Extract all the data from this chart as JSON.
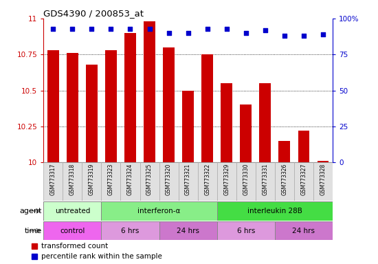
{
  "title": "GDS4390 / 200853_at",
  "samples": [
    "GSM773317",
    "GSM773318",
    "GSM773319",
    "GSM773323",
    "GSM773324",
    "GSM773325",
    "GSM773320",
    "GSM773321",
    "GSM773322",
    "GSM773329",
    "GSM773330",
    "GSM773331",
    "GSM773326",
    "GSM773327",
    "GSM773328"
  ],
  "bar_values": [
    10.78,
    10.76,
    10.68,
    10.78,
    10.9,
    10.98,
    10.8,
    10.5,
    10.75,
    10.55,
    10.4,
    10.55,
    10.15,
    10.22,
    10.01
  ],
  "percentile_values": [
    93,
    93,
    93,
    93,
    93,
    93,
    90,
    90,
    93,
    93,
    90,
    92,
    88,
    88,
    89
  ],
  "bar_color": "#cc0000",
  "dot_color": "#0000cc",
  "ylim_left": [
    10,
    11
  ],
  "ylim_right": [
    0,
    100
  ],
  "yticks_left": [
    10,
    10.25,
    10.5,
    10.75,
    11
  ],
  "yticks_right": [
    0,
    25,
    50,
    75,
    100
  ],
  "ytick_labels_right": [
    "0",
    "25",
    "50",
    "75",
    "100%"
  ],
  "agent_groups": [
    {
      "label": "untreated",
      "start": 0,
      "end": 3,
      "color": "#ccffcc"
    },
    {
      "label": "interferon-α",
      "start": 3,
      "end": 9,
      "color": "#88ee88"
    },
    {
      "label": "interleukin 28B",
      "start": 9,
      "end": 15,
      "color": "#44dd44"
    }
  ],
  "time_groups": [
    {
      "label": "control",
      "start": 0,
      "end": 3,
      "color": "#ee66ee"
    },
    {
      "label": "6 hrs",
      "start": 3,
      "end": 6,
      "color": "#dd99dd"
    },
    {
      "label": "24 hrs",
      "start": 6,
      "end": 9,
      "color": "#cc77cc"
    },
    {
      "label": "6 hrs",
      "start": 9,
      "end": 12,
      "color": "#dd99dd"
    },
    {
      "label": "24 hrs",
      "start": 12,
      "end": 15,
      "color": "#cc77cc"
    }
  ]
}
